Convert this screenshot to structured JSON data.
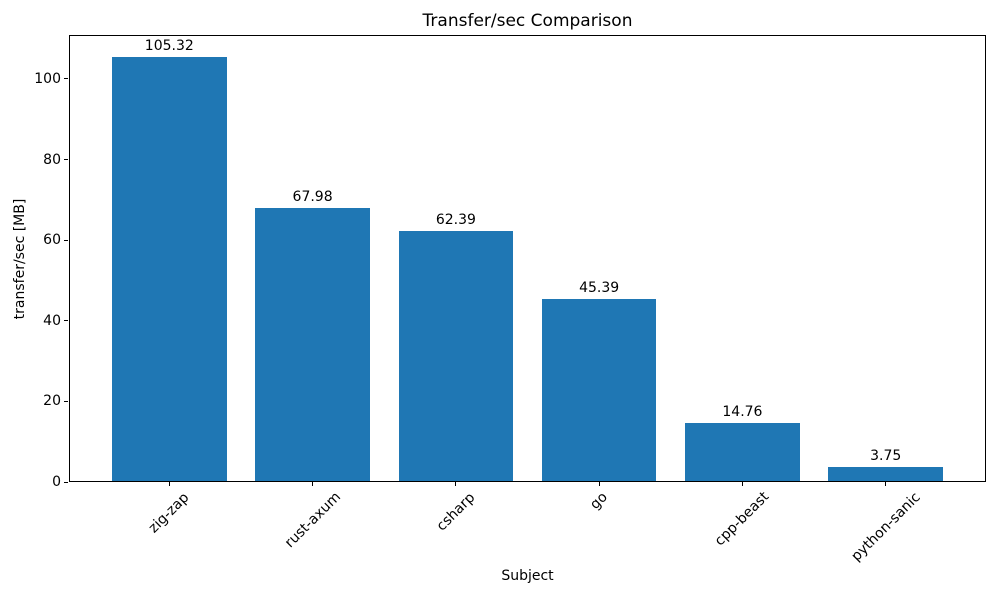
{
  "chart_data": {
    "type": "bar",
    "title": "Transfer/sec Comparison",
    "xlabel": "Subject",
    "ylabel": "transfer/sec [MB]",
    "categories": [
      "zig-zap",
      "rust-axum",
      "csharp",
      "go",
      "cpp-beast",
      "python-sanic"
    ],
    "values": [
      105.32,
      67.98,
      62.39,
      45.39,
      14.76,
      3.75
    ],
    "value_labels": [
      "105.32",
      "67.98",
      "62.39",
      "45.39",
      "14.76",
      "3.75"
    ],
    "bar_color": "#1f77b4",
    "ylim": [
      0,
      110.9
    ],
    "xlim": [
      -0.7,
      5.7
    ],
    "bar_width_units": 0.8,
    "yticks": [
      0,
      20,
      40,
      60,
      80,
      100
    ],
    "ytick_labels": [
      "0",
      "20",
      "40",
      "60",
      "80",
      "100"
    ],
    "xtick_rotation_deg": 45,
    "grid": false,
    "legend": "none",
    "background_color": "#ffffff",
    "text_color": "#000000"
  }
}
